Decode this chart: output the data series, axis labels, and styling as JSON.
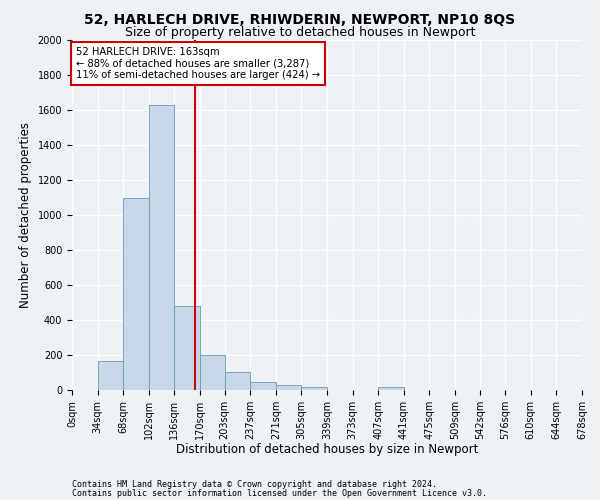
{
  "title1": "52, HARLECH DRIVE, RHIWDERIN, NEWPORT, NP10 8QS",
  "title2": "Size of property relative to detached houses in Newport",
  "xlabel": "Distribution of detached houses by size in Newport",
  "ylabel": "Number of detached properties",
  "footnote1": "Contains HM Land Registry data © Crown copyright and database right 2024.",
  "footnote2": "Contains public sector information licensed under the Open Government Licence v3.0.",
  "bin_edges": [
    0,
    34,
    68,
    102,
    136,
    170,
    203,
    237,
    271,
    305,
    339,
    373,
    407,
    441,
    475,
    509,
    542,
    576,
    610,
    644,
    678
  ],
  "bar_heights": [
    0,
    165,
    1095,
    1630,
    480,
    200,
    105,
    45,
    30,
    20,
    0,
    0,
    20,
    0,
    0,
    0,
    0,
    0,
    0,
    0
  ],
  "bar_color": "#c8d8e8",
  "bar_edgecolor": "#6699bb",
  "vline_x": 163,
  "vline_color": "#cc0000",
  "annotation_text": "52 HARLECH DRIVE: 163sqm\n← 88% of detached houses are smaller (3,287)\n11% of semi-detached houses are larger (424) →",
  "annotation_box_color": "white",
  "annotation_box_edgecolor": "#cc0000",
  "ylim": [
    0,
    2000
  ],
  "yticks": [
    0,
    200,
    400,
    600,
    800,
    1000,
    1200,
    1400,
    1600,
    1800,
    2000
  ],
  "background_color": "#eef2f7",
  "grid_color": "#ffffff",
  "title_fontsize": 10,
  "subtitle_fontsize": 9,
  "tick_label_fontsize": 7,
  "axis_label_fontsize": 8.5,
  "ylabel_fontsize": 8.5,
  "footnote_fontsize": 6
}
